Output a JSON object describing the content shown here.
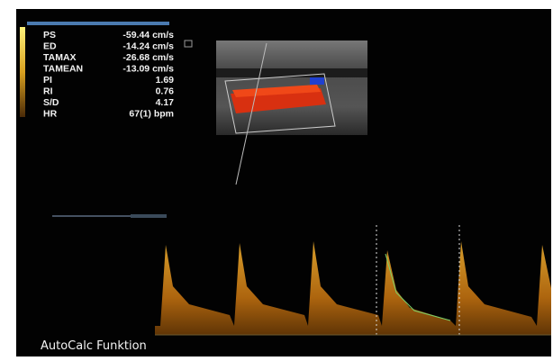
{
  "measurements": [
    {
      "label": "PS",
      "value": "-59.44 cm/s"
    },
    {
      "label": "ED",
      "value": "-14.24 cm/s"
    },
    {
      "label": "TAMAX",
      "value": "-26.68 cm/s"
    },
    {
      "label": "TAMEAN",
      "value": "-13.09 cm/s"
    },
    {
      "label": "PI",
      "value": "1.69"
    },
    {
      "label": "RI",
      "value": "0.76"
    },
    {
      "label": "S/D",
      "value": "4.17"
    },
    {
      "label": "HR",
      "value": "67(1) bpm"
    }
  ],
  "caption": "AutoCalc Funktion"
}
